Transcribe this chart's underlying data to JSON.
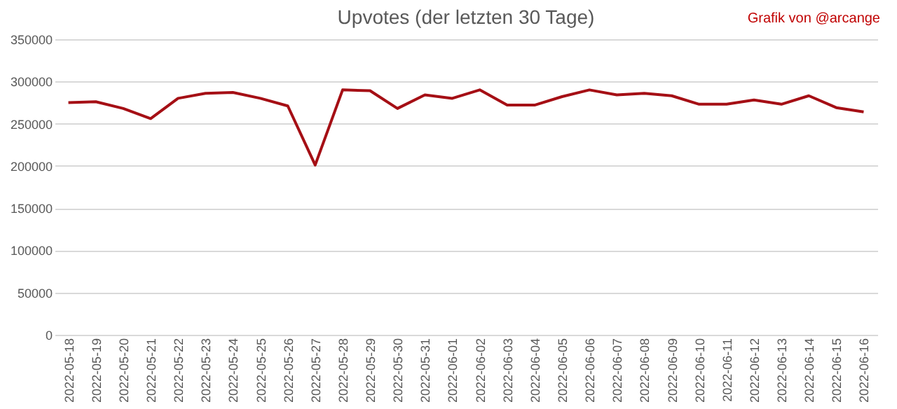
{
  "chart_data": {
    "type": "line",
    "title": "Upvotes (der letzten 30 Tage)",
    "annotations": [
      "Grafik von @arcange"
    ],
    "categories": [
      "2022-05-18",
      "2022-05-19",
      "2022-05-20",
      "2022-05-21",
      "2022-05-22",
      "2022-05-23",
      "2022-05-24",
      "2022-05-25",
      "2022-05-26",
      "2022-05-27",
      "2022-05-28",
      "2022-05-29",
      "2022-05-30",
      "2022-05-31",
      "2022-06-01",
      "2022-06-02",
      "2022-06-03",
      "2022-06-04",
      "2022-06-05",
      "2022-06-06",
      "2022-06-07",
      "2022-06-08",
      "2022-06-09",
      "2022-06-10",
      "2022-06-11",
      "2022-06-12",
      "2022-06-13",
      "2022-06-14",
      "2022-06-15",
      "2022-06-16"
    ],
    "series": [
      {
        "color": "#a50f15",
        "values": [
          275000,
          276000,
          268000,
          256000,
          280000,
          286000,
          287000,
          280000,
          271000,
          201000,
          290000,
          289000,
          268000,
          284000,
          280000,
          290000,
          272000,
          272000,
          282000,
          290000,
          284000,
          286000,
          283000,
          273000,
          273000,
          278000,
          273000,
          283000,
          269000,
          264000
        ]
      }
    ],
    "ylim": [
      0,
      350000
    ],
    "yticks": [
      0,
      50000,
      100000,
      150000,
      200000,
      250000,
      300000,
      350000
    ],
    "grid": "y",
    "marker": "none",
    "line_style": "solid",
    "legend": false
  }
}
